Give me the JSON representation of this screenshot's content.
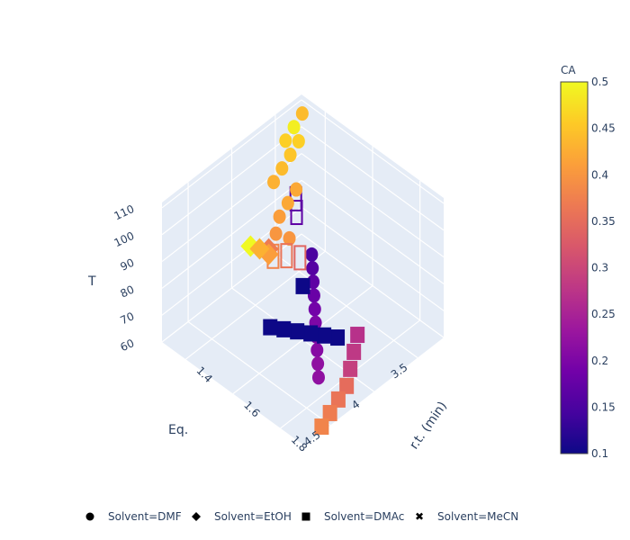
{
  "chart_data": {
    "type": "scatter3d",
    "title": "",
    "axes": {
      "x": {
        "label": "r.t. (min)",
        "ticks": [
          "1.4",
          "1.6",
          "1.8"
        ],
        "range": [
          1.3,
          1.9
        ]
      },
      "y": {
        "label": "Eq.",
        "ticks": [
          "3.5",
          "4",
          "4.5"
        ],
        "range": [
          3.2,
          4.8
        ]
      },
      "z": {
        "label": "T",
        "ticks": [
          "60",
          "70",
          "80",
          "90",
          "100",
          "110"
        ],
        "range": [
          60,
          112
        ]
      }
    },
    "colorbar": {
      "title": "CA",
      "ticks": [
        "0.1",
        "0.15",
        "0.2",
        "0.25",
        "0.3",
        "0.35",
        "0.4",
        "0.45",
        "0.5"
      ],
      "range": [
        0.1,
        0.5
      ],
      "colorscale": [
        "#0d0887",
        "#46039f",
        "#7201a8",
        "#9c179e",
        "#bd3786",
        "#d8576b",
        "#ed7953",
        "#fb9f3a",
        "#fdca26",
        "#f0f921"
      ]
    },
    "legend": {
      "position": "bottom",
      "items": [
        {
          "label": "Solvent=DMF",
          "symbol": "circle"
        },
        {
          "label": "Solvent=EtOH",
          "symbol": "diamond"
        },
        {
          "label": "Solvent=DMAc",
          "symbol": "square"
        },
        {
          "label": "Solvent=MeCN",
          "symbol": "x"
        }
      ]
    },
    "series": [
      {
        "name": "Solvent=DMF",
        "symbol": "circle",
        "points": [
          {
            "x": 1.34,
            "y": 3.3,
            "z": 110,
            "c": 0.44
          },
          {
            "x": 1.36,
            "y": 3.45,
            "z": 110,
            "c": 0.49
          },
          {
            "x": 1.38,
            "y": 3.6,
            "z": 110,
            "c": 0.46
          },
          {
            "x": 1.38,
            "y": 3.45,
            "z": 106,
            "c": 0.46
          },
          {
            "x": 1.4,
            "y": 3.6,
            "z": 106,
            "c": 0.45
          },
          {
            "x": 1.42,
            "y": 3.75,
            "z": 106,
            "c": 0.44
          },
          {
            "x": 1.44,
            "y": 3.9,
            "z": 106,
            "c": 0.43
          },
          {
            "x": 1.48,
            "y": 3.75,
            "z": 102,
            "c": 0.42
          },
          {
            "x": 1.5,
            "y": 3.9,
            "z": 102,
            "c": 0.42
          },
          {
            "x": 1.52,
            "y": 4.05,
            "z": 102,
            "c": 0.41
          },
          {
            "x": 1.56,
            "y": 4.2,
            "z": 102,
            "c": 0.4
          },
          {
            "x": 1.58,
            "y": 4.1,
            "z": 99,
            "c": 0.4
          },
          {
            "x": 1.38,
            "y": 3.3,
            "z": 60,
            "c": 0.15
          },
          {
            "x": 1.42,
            "y": 3.4,
            "z": 60,
            "c": 0.16
          },
          {
            "x": 1.46,
            "y": 3.5,
            "z": 60,
            "c": 0.17
          },
          {
            "x": 1.5,
            "y": 3.6,
            "z": 60,
            "c": 0.18
          },
          {
            "x": 1.54,
            "y": 3.7,
            "z": 60,
            "c": 0.19
          },
          {
            "x": 1.58,
            "y": 3.8,
            "z": 60,
            "c": 0.2
          },
          {
            "x": 1.62,
            "y": 3.9,
            "z": 60,
            "c": 0.21
          },
          {
            "x": 1.66,
            "y": 4.0,
            "z": 60,
            "c": 0.21
          },
          {
            "x": 1.7,
            "y": 4.1,
            "z": 60,
            "c": 0.22
          },
          {
            "x": 1.74,
            "y": 4.2,
            "z": 60,
            "c": 0.22
          }
        ]
      },
      {
        "name": "Solvent=EtOH",
        "symbol": "diamond",
        "points": [
          {
            "x": 1.6,
            "y": 4.6,
            "z": 110,
            "c": 0.5
          },
          {
            "x": 1.62,
            "y": 4.55,
            "z": 109,
            "c": 0.43
          },
          {
            "x": 1.64,
            "y": 4.5,
            "z": 109,
            "c": 0.37
          },
          {
            "x": 1.64,
            "y": 4.5,
            "z": 107,
            "c": 0.41
          }
        ]
      },
      {
        "name": "Solvent=DMAc",
        "symbol": "square",
        "points": [
          {
            "x": 1.72,
            "y": 4.7,
            "z": 90,
            "c": 0.1
          },
          {
            "x": 1.74,
            "y": 4.6,
            "z": 88,
            "c": 0.1
          },
          {
            "x": 1.76,
            "y": 4.5,
            "z": 86,
            "c": 0.1
          },
          {
            "x": 1.78,
            "y": 4.4,
            "z": 84,
            "c": 0.1
          },
          {
            "x": 1.8,
            "y": 4.3,
            "z": 82,
            "c": 0.1
          },
          {
            "x": 1.82,
            "y": 4.2,
            "z": 80,
            "c": 0.1
          },
          {
            "x": 1.6,
            "y": 4.0,
            "z": 80,
            "c": 0.1
          },
          {
            "x": 1.72,
            "y": 3.7,
            "z": 62,
            "c": 0.27
          },
          {
            "x": 1.76,
            "y": 3.85,
            "z": 62,
            "c": 0.28
          },
          {
            "x": 1.8,
            "y": 4.0,
            "z": 62,
            "c": 0.29
          },
          {
            "x": 1.84,
            "y": 4.15,
            "z": 62,
            "c": 0.35
          },
          {
            "x": 1.86,
            "y": 4.3,
            "z": 62,
            "c": 0.36
          },
          {
            "x": 1.88,
            "y": 4.45,
            "z": 62,
            "c": 0.37
          },
          {
            "x": 1.9,
            "y": 4.6,
            "z": 62,
            "c": 0.38
          }
        ]
      },
      {
        "name": "Solvent=MeCN",
        "symbol": "x",
        "points": [
          {
            "x": 1.64,
            "y": 4.45,
            "z": 105,
            "c": 0.38
          },
          {
            "x": 1.66,
            "y": 4.35,
            "z": 104,
            "c": 0.36
          },
          {
            "x": 1.68,
            "y": 4.25,
            "z": 102,
            "c": 0.34
          },
          {
            "x": 1.5,
            "y": 3.8,
            "z": 96,
            "c": 0.17
          },
          {
            "x": 1.46,
            "y": 3.7,
            "z": 96,
            "c": 0.16
          }
        ]
      }
    ]
  }
}
